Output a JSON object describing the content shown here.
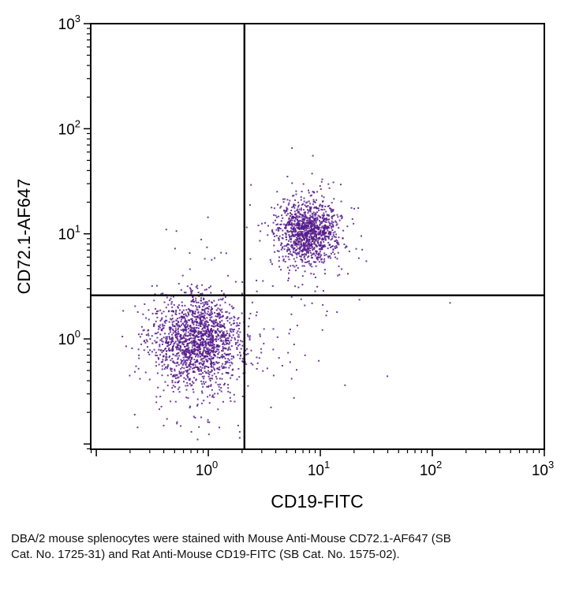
{
  "figure": {
    "caption": "DBA/2 mouse splenocytes were stained with Mouse Anti-Mouse CD72.1-AF647 (SB Cat. No. 1725-31) and Rat Anti-Mouse CD19-FITC (SB Cat. No. 1575-02)."
  },
  "chart_data": {
    "type": "scatter",
    "subtype": "flow-cytometry-dot-plot",
    "title": "",
    "xlabel": "CD19-FITC",
    "ylabel": "CD72.1-AF647",
    "x_scale": "log10",
    "y_scale": "log10",
    "x_domain_decades": [
      -1.05,
      3
    ],
    "y_domain_decades": [
      -1.05,
      3
    ],
    "x_tick_exponents": [
      0,
      1,
      2,
      3
    ],
    "y_tick_exponents": [
      0,
      1,
      2,
      3
    ],
    "grid": "off",
    "legend": "none",
    "quadrant_gate": {
      "x_value": 2.1,
      "y_value": 2.6
    },
    "point_color": "#551a8b",
    "populations": [
      {
        "name": "double-negative cluster",
        "center": {
          "x": 0.8,
          "y": 1.0
        },
        "sd_decades": {
          "x": 0.2,
          "y": 0.21
        },
        "count": 1500
      },
      {
        "name": "double-negative lower tail",
        "center": {
          "x": 0.75,
          "y": 0.5
        },
        "sd_decades": {
          "x": 0.24,
          "y": 0.28
        },
        "count": 160
      },
      {
        "name": "CD19-positive CD72.1-positive B-cell cluster",
        "center": {
          "x": 7.8,
          "y": 10.5
        },
        "sd_decades": {
          "x": 0.13,
          "y": 0.15
        },
        "count": 1050
      },
      {
        "name": "B-cell cluster halo",
        "center": {
          "x": 7.5,
          "y": 9.5
        },
        "sd_decades": {
          "x": 0.24,
          "y": 0.28
        },
        "count": 140
      },
      {
        "name": "intermediate sparse scatter",
        "center": {
          "x": 2.0,
          "y": 2.0
        },
        "sd_decades": {
          "x": 0.5,
          "y": 0.5
        },
        "count": 90
      }
    ]
  }
}
